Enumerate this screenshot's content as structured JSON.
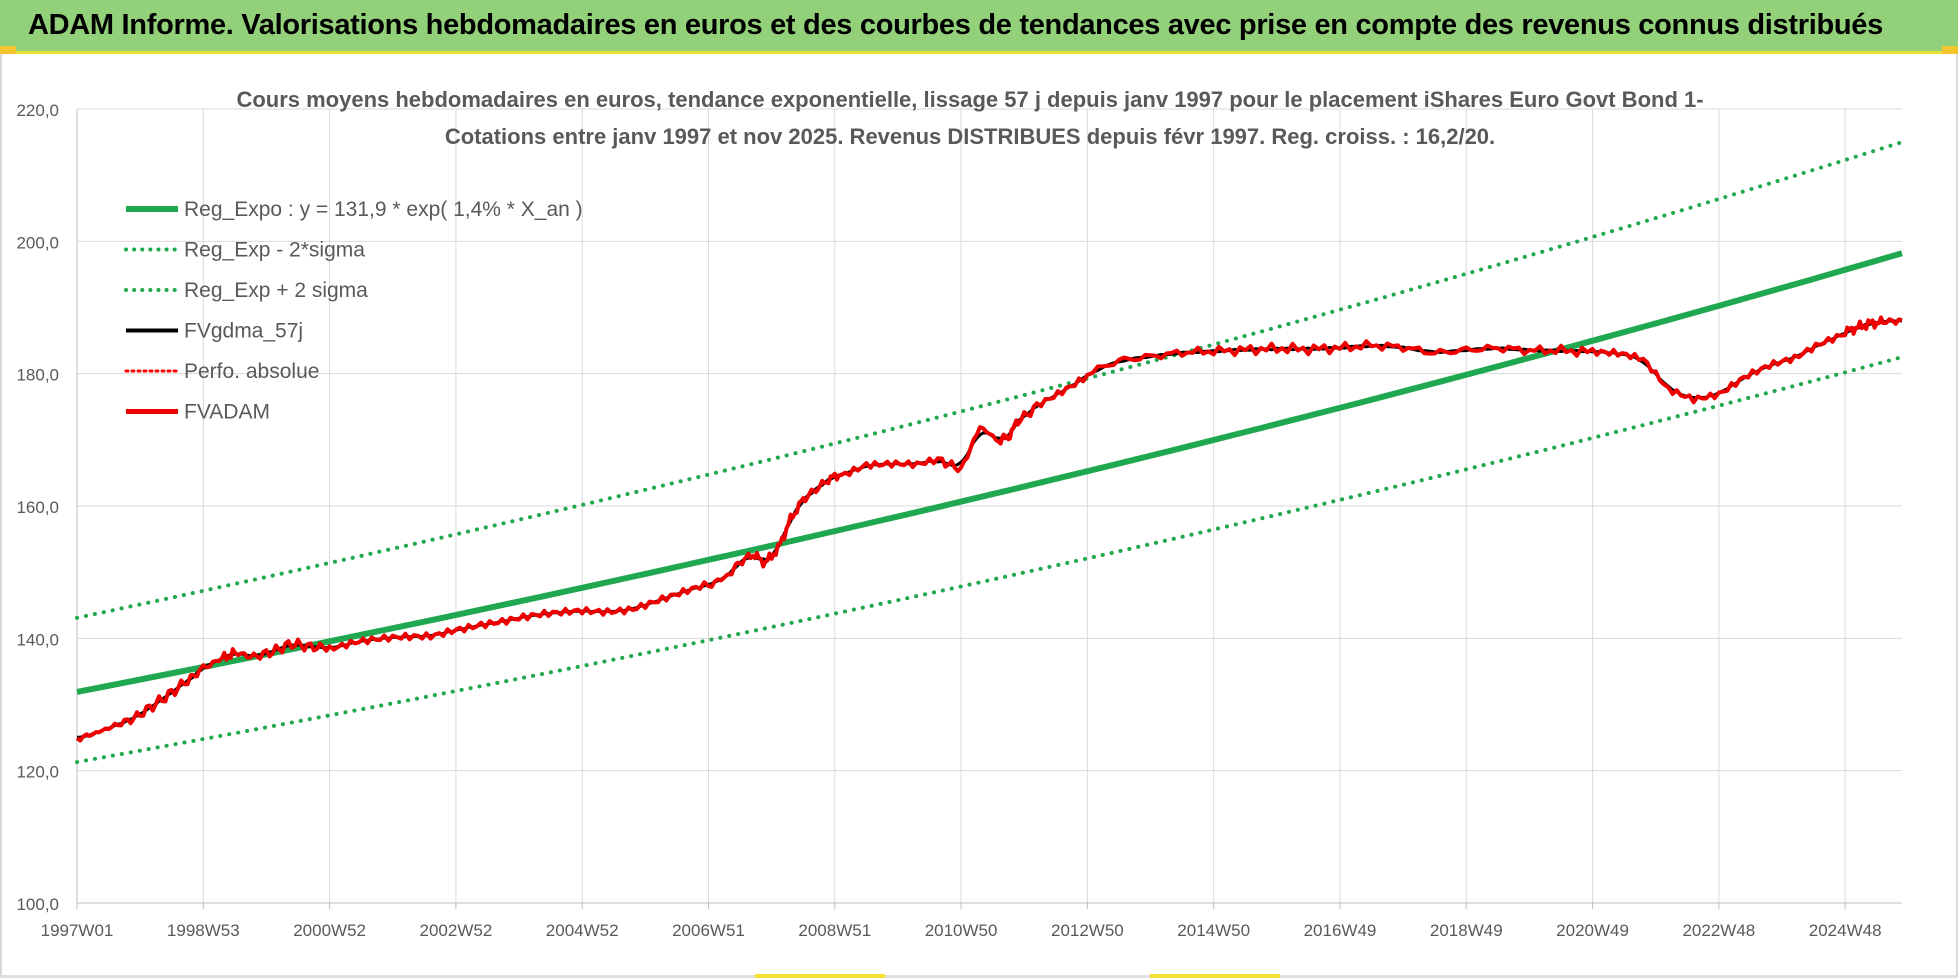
{
  "header": {
    "title": "ADAM Informe. Valorisations hebdomadaires en euros et des courbes de tendances avec prise en compte des revenus connus distribués"
  },
  "colors": {
    "banner": "#92d07a",
    "reg_green": "#1fa84f",
    "sigma_green": "#21a84f",
    "fvadam_red": "#ee0000",
    "fvgdma_black": "#000000",
    "perfo_red": "#ff0000",
    "grid": "#d9d9d9",
    "axis_text": "#595959"
  },
  "chart_data": {
    "type": "line",
    "title_line1": "Cours moyens hebdomadaires en euros, tendance exponentielle, lissage 57 j depuis janv 1997 pour le placement iShares Euro Govt Bond 1-",
    "title_line2": "Cotations entre janv 1997 et nov 2025. Revenus DISTRIBUES depuis févr 1997. Reg. croiss. : 16,2/20.",
    "xlabel": "",
    "ylabel": "",
    "x_range_years": [
      1997.0,
      2025.9
    ],
    "ylim": [
      100,
      220
    ],
    "y_ticks": [
      "100,0",
      "120,0",
      "140,0",
      "160,0",
      "180,0",
      "200,0",
      "220,0"
    ],
    "y_tick_values": [
      100,
      120,
      140,
      160,
      180,
      200,
      220
    ],
    "x_ticks": [
      "1997W01",
      "1998W53",
      "2000W52",
      "2002W52",
      "2004W52",
      "2006W51",
      "2008W51",
      "2010W50",
      "2012W50",
      "2014W50",
      "2016W49",
      "2018W49",
      "2020W49",
      "2022W48",
      "2024W48"
    ],
    "x_tick_years": [
      1997.0,
      1999.0,
      2001.0,
      2003.0,
      2005.0,
      2007.0,
      2009.0,
      2011.0,
      2013.0,
      2015.0,
      2017.0,
      2019.0,
      2021.0,
      2023.0,
      2025.0
    ],
    "grid": true,
    "legend_position": "top-left",
    "legend": [
      {
        "name": "Reg_Expo : y = 131,9 * exp( 1,4% *  X_an )",
        "style": "solid-green"
      },
      {
        "name": "Reg_Exp - 2*sigma",
        "style": "dotted-green"
      },
      {
        "name": "Reg_Exp + 2 sigma",
        "style": "dotted-green"
      },
      {
        "name": "FVgdma_57j",
        "style": "solid-black"
      },
      {
        "name": "Perfo. absolue",
        "style": "dotted-red"
      },
      {
        "name": "FVADAM",
        "style": "solid-red"
      }
    ],
    "series": [
      {
        "name": "Reg_Expo",
        "start": 131.9,
        "end": 198.2
      },
      {
        "name": "Reg_Exp - 2*sigma",
        "start": 121.3,
        "end": 182.5
      },
      {
        "name": "Reg_Exp + 2 sigma",
        "start": 143.1,
        "end": 215.0
      },
      {
        "name": "FVADAM",
        "x": [
          1997.0,
          1997.3,
          1997.6,
          1997.9,
          1998.2,
          1998.5,
          1998.8,
          1999.0,
          1999.3,
          1999.5,
          1999.8,
          2000.1,
          2000.4,
          2000.7,
          2001.0,
          2001.4,
          2001.8,
          2002.2,
          2002.6,
          2003.0,
          2003.4,
          2003.8,
          2004.2,
          2004.6,
          2005.0,
          2005.4,
          2005.8,
          2006.2,
          2006.6,
          2007.0,
          2007.3,
          2007.5,
          2007.7,
          2007.9,
          2008.1,
          2008.3,
          2008.5,
          2008.7,
          2008.9,
          2009.1,
          2009.5,
          2009.9,
          2010.3,
          2010.7,
          2011.0,
          2011.3,
          2011.6,
          2011.75,
          2011.9,
          2012.2,
          2012.6,
          2013.0,
          2013.5,
          2014.0,
          2014.5,
          2015.0,
          2015.5,
          2016.0,
          2016.5,
          2017.0,
          2017.5,
          2018.0,
          2018.5,
          2019.0,
          2019.5,
          2020.0,
          2020.5,
          2021.0,
          2021.4,
          2021.8,
          2022.2,
          2022.6,
          2023.0,
          2023.4,
          2023.8,
          2024.2,
          2024.6,
          2025.0,
          2025.2,
          2025.4,
          2025.6,
          2025.9
        ],
        "values": [
          124.8,
          125.7,
          126.8,
          127.9,
          129.8,
          131.8,
          134.0,
          135.5,
          137.0,
          137.8,
          137.2,
          138.0,
          139.2,
          138.7,
          138.6,
          139.3,
          139.6,
          140.0,
          140.4,
          141.6,
          142.3,
          142.6,
          143.1,
          143.6,
          144.2,
          144.3,
          144.7,
          145.7,
          146.7,
          147.9,
          149.5,
          151.5,
          152.7,
          151.4,
          153.5,
          158.0,
          161.0,
          162.5,
          164.0,
          164.9,
          166.5,
          166.4,
          166.0,
          166.8,
          165.5,
          172.0,
          169.8,
          170.5,
          172.8,
          175.0,
          177.5,
          180.0,
          182.0,
          182.6,
          183.2,
          183.4,
          183.6,
          183.8,
          183.7,
          183.9,
          184.3,
          184.0,
          183.1,
          183.6,
          183.9,
          183.5,
          183.5,
          183.3,
          182.8,
          181.9,
          177.6,
          176.4,
          177.2,
          179.5,
          181.0,
          182.0,
          184.4,
          186.3,
          187.0,
          187.6,
          187.8,
          188.1
        ]
      },
      {
        "name": "FVgdma_57j",
        "note": "smoothed version of FVADAM"
      }
    ]
  }
}
